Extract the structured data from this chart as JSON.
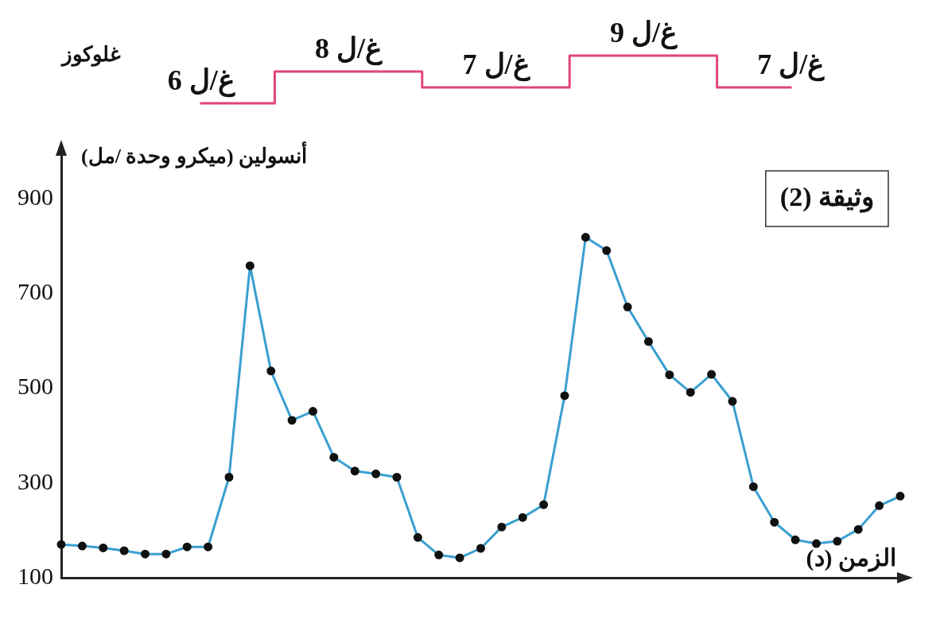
{
  "chart_data": [
    {
      "type": "step",
      "ylabel": "غلوكوز",
      "categories": [
        null,
        null,
        null,
        null,
        null
      ],
      "tick_labels": false,
      "series": [
        {
          "color": "#e0457b",
          "values": [
            6,
            8,
            7,
            9,
            7
          ],
          "value_labels": [
            "6 غ/ل",
            "8 غ/ل",
            "7 غ/ل",
            "9 غ/ل",
            "7 غ/ل"
          ]
        }
      ]
    },
    {
      "type": "line",
      "ylabel": "أنسولين (ميكرو وحدة /مل)",
      "xlabel": "الزمن (د)",
      "annotations": [
        "وثيقة (2)"
      ],
      "categories": [
        null,
        null,
        null,
        null,
        null,
        null,
        null,
        null,
        null,
        null,
        null,
        null,
        null,
        null,
        null,
        null,
        null,
        null,
        null,
        null,
        null,
        null,
        null,
        null,
        null,
        null,
        null,
        null,
        null,
        null,
        null,
        null,
        null,
        null,
        null,
        null,
        null,
        null,
        null,
        null,
        null
      ],
      "ylim": [
        100,
        1000
      ],
      "yticks": [
        100,
        300,
        500,
        700,
        900
      ],
      "tick_labels": "y",
      "grid": false,
      "marker": "circle",
      "line_style": "solid",
      "series": [
        {
          "color": "#3a9fd0",
          "values": [
            170,
            167,
            163,
            157,
            150,
            150,
            165,
            165,
            312,
            758,
            536,
            432,
            451,
            354,
            325,
            319,
            312,
            185,
            148,
            142,
            162,
            207,
            227,
            254,
            484,
            818,
            790,
            671,
            598,
            528,
            491,
            529,
            472,
            292,
            217,
            180,
            172,
            177,
            202,
            252,
            272
          ]
        }
      ]
    }
  ]
}
